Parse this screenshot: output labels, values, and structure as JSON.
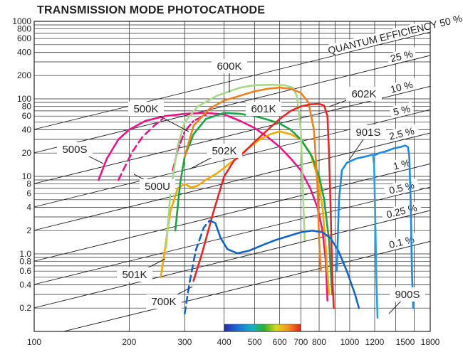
{
  "chart_data": {
    "type": "line",
    "title": "TRANSMISSION MODE PHOTOCATHODE",
    "xlabel": "",
    "ylabel": "",
    "x_scale": "log",
    "y_scale": "log",
    "xlim": [
      100,
      1800
    ],
    "ylim": [
      0.1,
      1000
    ],
    "grid": true,
    "x_ticks": [
      100,
      200,
      300,
      400,
      500,
      600,
      700,
      800,
      1000,
      1200,
      1500,
      1800
    ],
    "x_tick_labels": [
      "100",
      "200",
      "300",
      "400",
      "500",
      "600",
      "700",
      "800",
      "1000",
      "1200",
      "1500",
      "1800"
    ],
    "y_ticks": [
      0.2,
      0.4,
      0.6,
      0.8,
      1,
      2,
      4,
      6,
      8,
      10,
      20,
      40,
      60,
      80,
      100,
      200,
      400,
      600,
      800,
      1000
    ],
    "y_tick_labels": [
      "0.2",
      "0.4",
      "0.6",
      "0.8",
      "1.0",
      "2",
      "4",
      "6",
      "8",
      "10",
      "20",
      "40",
      "60",
      "80",
      "100",
      "200",
      "400",
      "600",
      "800",
      "1000"
    ],
    "quantum_efficiency_lines": [
      {
        "label": "QUANTUM EFFICIENCY 50 %",
        "value": 50
      },
      {
        "label": "25 %",
        "value": 25
      },
      {
        "label": "10 %",
        "value": 10
      },
      {
        "label": "5 %",
        "value": 5
      },
      {
        "label": "2.5 %",
        "value": 2.5
      },
      {
        "label": "1 %",
        "value": 1
      },
      {
        "label": "0.5 %",
        "value": 0.5
      },
      {
        "label": "0.25 %",
        "value": 0.25
      },
      {
        "label": "0.1 %",
        "value": 0.1
      }
    ],
    "spectrum_bar": {
      "from": 400,
      "to": 700
    },
    "series": [
      {
        "name": "500S",
        "color": "#e6168a",
        "dash": false,
        "points": [
          [
            160,
            9
          ],
          [
            170,
            17
          ],
          [
            185,
            30
          ],
          [
            200,
            40
          ],
          [
            225,
            52
          ],
          [
            260,
            60
          ],
          [
            300,
            64
          ],
          [
            350,
            66
          ],
          [
            400,
            63
          ],
          [
            450,
            52
          ],
          [
            500,
            42
          ],
          [
            550,
            32
          ],
          [
            600,
            24
          ],
          [
            650,
            17
          ],
          [
            700,
            12
          ],
          [
            750,
            7
          ],
          [
            790,
            4
          ],
          [
            820,
            2
          ],
          [
            840,
            0.8
          ],
          [
            850,
            0.25
          ]
        ]
      },
      {
        "name": "500U",
        "color": "#e6168a",
        "dash": true,
        "points": [
          [
            185,
            9
          ],
          [
            195,
            14
          ],
          [
            205,
            21
          ],
          [
            220,
            32
          ],
          [
            240,
            45
          ],
          [
            255,
            55
          ]
        ]
      },
      {
        "name": "500K",
        "color": "#e6168a",
        "dash": "dashdot",
        "points": [
          [
            275,
            12
          ],
          [
            285,
            22
          ],
          [
            300,
            38
          ],
          [
            320,
            52
          ],
          [
            350,
            62
          ]
        ]
      },
      {
        "name": "501K",
        "color": "#f4a900",
        "dash": false,
        "points": [
          [
            252,
            0.5
          ],
          [
            260,
            1.2
          ],
          [
            270,
            3.5
          ],
          [
            285,
            7
          ],
          [
            300,
            8
          ],
          [
            315,
            7.2
          ],
          [
            330,
            7.6
          ],
          [
            350,
            9
          ],
          [
            380,
            11
          ],
          [
            420,
            15
          ],
          [
            470,
            22
          ],
          [
            520,
            30
          ],
          [
            560,
            35
          ],
          [
            600,
            38
          ],
          [
            650,
            35
          ],
          [
            700,
            30
          ],
          [
            750,
            20
          ],
          [
            790,
            10
          ],
          [
            820,
            4
          ],
          [
            840,
            1.2
          ],
          [
            860,
            0.3
          ]
        ]
      },
      {
        "name": "502K",
        "color": "#1aa545",
        "dash": false,
        "points": [
          [
            280,
            2
          ],
          [
            290,
            8
          ],
          [
            300,
            18
          ],
          [
            320,
            35
          ],
          [
            350,
            55
          ],
          [
            400,
            66
          ],
          [
            450,
            64
          ],
          [
            500,
            60
          ],
          [
            550,
            54
          ],
          [
            600,
            48
          ],
          [
            650,
            40
          ],
          [
            700,
            30
          ],
          [
            760,
            18
          ],
          [
            800,
            10
          ],
          [
            830,
            5
          ],
          [
            860,
            1.5
          ],
          [
            880,
            0.3
          ]
        ]
      },
      {
        "name": "600K",
        "color": "#a8d88a",
        "dash": false,
        "points": [
          [
            262,
            1.2
          ],
          [
            270,
            6
          ],
          [
            285,
            25
          ],
          [
            300,
            50
          ],
          [
            330,
            80
          ],
          [
            380,
            110
          ],
          [
            450,
            140
          ],
          [
            500,
            150
          ],
          [
            560,
            152
          ],
          [
            620,
            150
          ],
          [
            660,
            140
          ],
          [
            680,
            110
          ],
          [
            700,
            40
          ],
          [
            710,
            8
          ],
          [
            720,
            1.5
          ]
        ]
      },
      {
        "name": "601K",
        "color": "#f08020",
        "dash": false,
        "points": [
          [
            300,
            18
          ],
          [
            320,
            45
          ],
          [
            360,
            75
          ],
          [
            400,
            95
          ],
          [
            450,
            110
          ],
          [
            500,
            125
          ],
          [
            550,
            135
          ],
          [
            600,
            140
          ],
          [
            650,
            135
          ],
          [
            700,
            120
          ],
          [
            740,
            90
          ],
          [
            770,
            40
          ],
          [
            790,
            8
          ],
          [
            800,
            1.5
          ],
          [
            810,
            0.6
          ]
        ]
      },
      {
        "name": "602K",
        "color": "#e8262a",
        "dash": false,
        "points": [
          [
            320,
            0.45
          ],
          [
            340,
            1
          ],
          [
            370,
            3.5
          ],
          [
            400,
            10
          ],
          [
            430,
            16
          ],
          [
            460,
            20
          ],
          [
            500,
            28
          ],
          [
            550,
            40
          ],
          [
            600,
            55
          ],
          [
            650,
            70
          ],
          [
            700,
            80
          ],
          [
            750,
            85
          ],
          [
            800,
            86
          ],
          [
            830,
            82
          ],
          [
            850,
            60
          ],
          [
            860,
            20
          ],
          [
            870,
            4
          ],
          [
            880,
            0.6
          ],
          [
            890,
            0.2
          ]
        ]
      },
      {
        "name": "700K",
        "color": "#1565c0",
        "dash": true,
        "points": [
          [
            300,
            0.17
          ],
          [
            310,
            0.4
          ],
          [
            325,
            1.1
          ],
          [
            345,
            2.2
          ],
          [
            360,
            2.7
          ],
          [
            375,
            2.5
          ]
        ]
      },
      {
        "name": "700K-solid",
        "color": "#1565c0",
        "dash": false,
        "points": [
          [
            375,
            2.5
          ],
          [
            390,
            1.6
          ],
          [
            410,
            1.15
          ],
          [
            440,
            1.02
          ],
          [
            480,
            1.1
          ],
          [
            530,
            1.3
          ],
          [
            580,
            1.5
          ],
          [
            640,
            1.7
          ],
          [
            700,
            1.9
          ],
          [
            760,
            2.0
          ],
          [
            820,
            1.9
          ],
          [
            870,
            1.6
          ],
          [
            920,
            1.1
          ],
          [
            980,
            0.6
          ],
          [
            1040,
            0.3
          ],
          [
            1070,
            0.2
          ]
        ]
      },
      {
        "name": "901S",
        "color": "#1e88e5",
        "dash": false,
        "points": [
          [
            910,
            0.6
          ],
          [
            925,
            5
          ],
          [
            945,
            12
          ],
          [
            980,
            15
          ],
          [
            1050,
            17
          ],
          [
            1120,
            18
          ],
          [
            1180,
            19
          ],
          [
            1210,
            19
          ],
          [
            1240,
            20
          ],
          [
            1300,
            21
          ],
          [
            1380,
            23
          ],
          [
            1450,
            24
          ],
          [
            1500,
            25
          ],
          [
            1530,
            24
          ],
          [
            1545,
            18
          ],
          [
            1560,
            5
          ],
          [
            1575,
            0.6
          ],
          [
            1590,
            0.2
          ]
        ]
      },
      {
        "name": "900S",
        "color": "#29a0e0",
        "dash": false,
        "points": [
          [
            1185,
            19
          ],
          [
            1195,
            14
          ],
          [
            1205,
            3
          ],
          [
            1215,
            0.5
          ],
          [
            1225,
            0.15
          ]
        ]
      }
    ],
    "labels": [
      {
        "text": "500S",
        "series": "500S"
      },
      {
        "text": "500U",
        "series": "500U"
      },
      {
        "text": "500K",
        "series": "500K"
      },
      {
        "text": "501K",
        "series": "501K"
      },
      {
        "text": "502K",
        "series": "502K"
      },
      {
        "text": "600K",
        "series": "600K"
      },
      {
        "text": "601K",
        "series": "601K"
      },
      {
        "text": "602K",
        "series": "602K"
      },
      {
        "text": "700K",
        "series": "700K"
      },
      {
        "text": "901S",
        "series": "901S"
      },
      {
        "text": "900S",
        "series": "900S"
      }
    ]
  }
}
